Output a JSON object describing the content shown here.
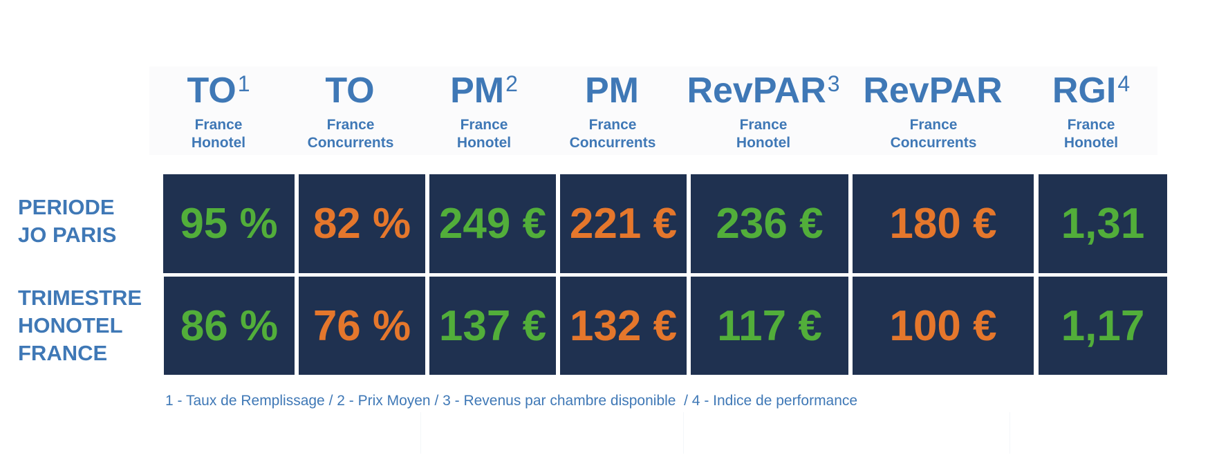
{
  "columns": [
    {
      "title": "TO",
      "sup": "1",
      "line1": "France",
      "line2": "Honotel"
    },
    {
      "title": "TO",
      "sup": "",
      "line1": "France",
      "line2": "Concurrents"
    },
    {
      "title": "PM",
      "sup": "2",
      "line1": "France",
      "line2": "Honotel"
    },
    {
      "title": "PM",
      "sup": "",
      "line1": "France",
      "line2": "Concurrents"
    },
    {
      "title": "RevPAR",
      "sup": "3",
      "line1": "France",
      "line2": "Honotel"
    },
    {
      "title": "RevPAR",
      "sup": "",
      "line1": "France",
      "line2": "Concurrents"
    },
    {
      "title": "RGI",
      "sup": "4",
      "line1": "France",
      "line2": "Honotel"
    }
  ],
  "rows": [
    {
      "label_lines": [
        "PERIODE",
        "JO PARIS"
      ],
      "values": [
        "95 %",
        "82 %",
        "249 €",
        "221 €",
        "236 €",
        "180 €",
        "1,31"
      ]
    },
    {
      "label_lines": [
        "TRIMESTRE",
        "HONOTEL",
        "FRANCE"
      ],
      "values": [
        "86 %",
        "76 %",
        "137 €",
        "132 €",
        "117 €",
        "100 €",
        "1,17"
      ]
    }
  ],
  "footnote": "1 - Taux de Remplissage / 2 - Prix Moyen / 3 - Revenus par chambre disponible  / 4 - Indice de performance",
  "colors": {
    "header_text": "#3f78b6",
    "cell_background": "#1f3150",
    "honotel_value": "#52ae3a",
    "competitor_value": "#e5772c"
  }
}
